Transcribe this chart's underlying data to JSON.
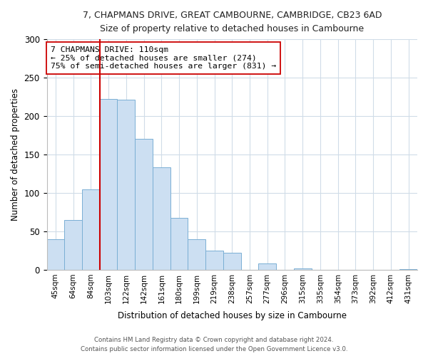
{
  "title": "7, CHAPMANS DRIVE, GREAT CAMBOURNE, CAMBRIDGE, CB23 6AD",
  "subtitle": "Size of property relative to detached houses in Cambourne",
  "xlabel": "Distribution of detached houses by size in Cambourne",
  "ylabel": "Number of detached properties",
  "bar_labels": [
    "45sqm",
    "64sqm",
    "84sqm",
    "103sqm",
    "122sqm",
    "142sqm",
    "161sqm",
    "180sqm",
    "199sqm",
    "219sqm",
    "238sqm",
    "257sqm",
    "277sqm",
    "296sqm",
    "315sqm",
    "335sqm",
    "354sqm",
    "373sqm",
    "392sqm",
    "412sqm",
    "431sqm"
  ],
  "bar_values": [
    40,
    65,
    105,
    222,
    221,
    170,
    133,
    68,
    40,
    25,
    22,
    0,
    8,
    0,
    2,
    0,
    0,
    0,
    0,
    0,
    1
  ],
  "bar_color": "#ccdff2",
  "bar_edge_color": "#7aafd4",
  "vline_color": "#cc0000",
  "annotation_title": "7 CHAPMANS DRIVE: 110sqm",
  "annotation_line1": "← 25% of detached houses are smaller (274)",
  "annotation_line2": "75% of semi-detached houses are larger (831) →",
  "annotation_box_edge": "#cc0000",
  "ylim": [
    0,
    300
  ],
  "yticks": [
    0,
    50,
    100,
    150,
    200,
    250,
    300
  ],
  "footnote1": "Contains HM Land Registry data © Crown copyright and database right 2024.",
  "footnote2": "Contains public sector information licensed under the Open Government Licence v3.0."
}
